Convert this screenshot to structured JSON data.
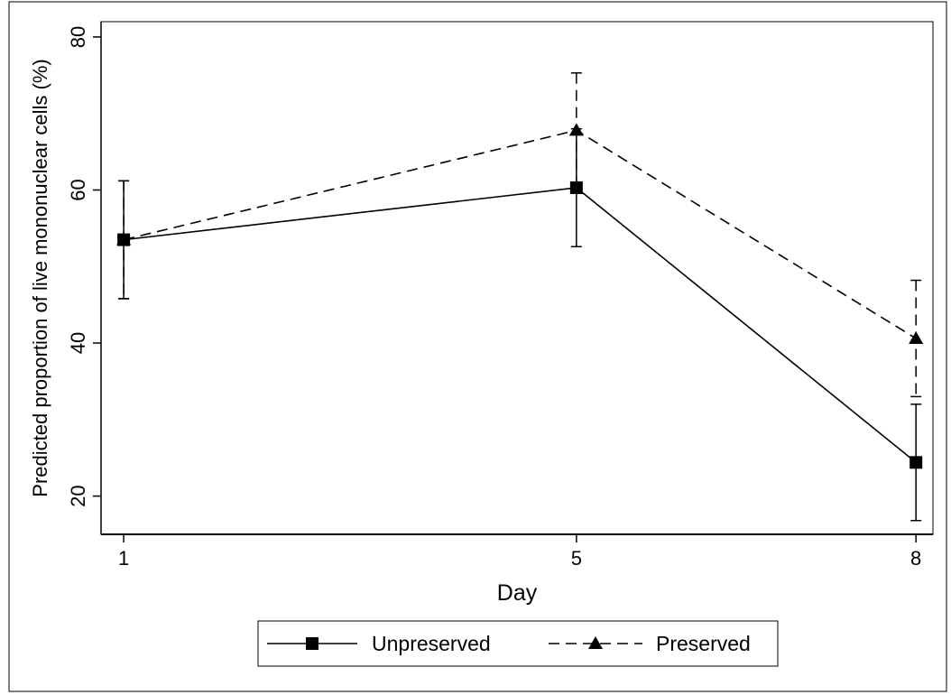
{
  "chart_data": {
    "type": "line",
    "title": "",
    "xlabel": "Day",
    "ylabel": "Predicted proportion of live mononuclear cells (%)",
    "x": [
      1,
      5,
      8
    ],
    "x_tick_labels": [
      "1",
      "5",
      "8"
    ],
    "ylim": [
      15,
      82
    ],
    "y_ticks": [
      20,
      40,
      60,
      80
    ],
    "y_tick_labels": [
      "20",
      "40",
      "60",
      "80"
    ],
    "grid": false,
    "legend_position": "bottom",
    "series": [
      {
        "name": "Unpreserved",
        "marker": "square",
        "line_style": "solid",
        "values": [
          53.5,
          60.3,
          24.4
        ],
        "ci_low": [
          45.8,
          52.6,
          16.8
        ],
        "ci_high": [
          61.2,
          68.0,
          32.0
        ]
      },
      {
        "name": "Preserved",
        "marker": "triangle",
        "line_style": "dashed",
        "values": [
          53.5,
          67.8,
          40.6
        ],
        "ci_low": [
          45.8,
          60.1,
          33.0
        ],
        "ci_high": [
          61.2,
          75.3,
          48.2
        ]
      }
    ]
  }
}
